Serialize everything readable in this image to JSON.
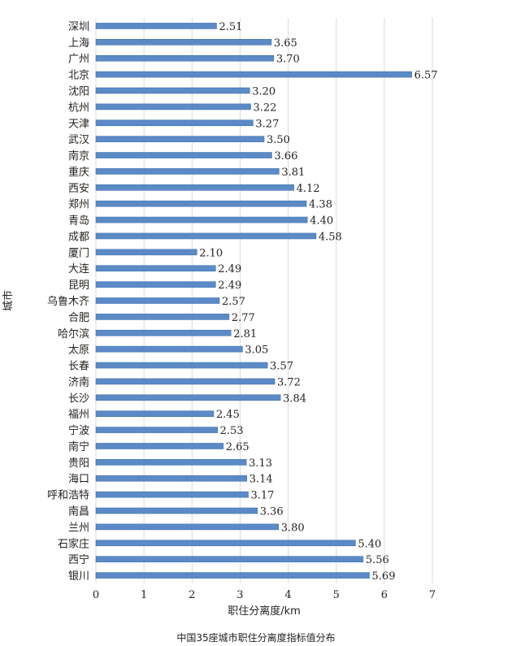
{
  "chart_data": {
    "type": "bar",
    "orientation": "horizontal",
    "categories": [
      "深圳",
      "上海",
      "广州",
      "北京",
      "沈阳",
      "杭州",
      "天津",
      "武汉",
      "南京",
      "重庆",
      "西安",
      "郑州",
      "青岛",
      "成都",
      "厦门",
      "大连",
      "昆明",
      "乌鲁木齐",
      "合肥",
      "哈尔滨",
      "太原",
      "长春",
      "济南",
      "长沙",
      "福州",
      "宁波",
      "南宁",
      "贵阳",
      "海口",
      "呼和浩特",
      "南昌",
      "兰州",
      "石家庄",
      "西宁",
      "银川"
    ],
    "values": [
      2.51,
      3.65,
      3.7,
      6.57,
      3.2,
      3.22,
      3.27,
      3.5,
      3.66,
      3.81,
      4.12,
      4.38,
      4.4,
      4.58,
      2.1,
      2.49,
      2.49,
      2.57,
      2.77,
      2.81,
      3.05,
      3.57,
      3.72,
      3.84,
      2.45,
      2.53,
      2.65,
      3.13,
      3.14,
      3.17,
      3.36,
      3.8,
      5.4,
      5.56,
      5.69
    ],
    "value_labels": [
      "2.51",
      "3.65",
      "3.70",
      "6.57",
      "3.20",
      "3.22",
      "3.27",
      "3.50",
      "3.66",
      "3.81",
      "4.12",
      "4.38",
      "4.40",
      "4.58",
      "2.10",
      "2.49",
      "2.49",
      "2.57",
      "2.77",
      "2.81",
      "3.05",
      "3.57",
      "3.72",
      "3.84",
      "2.45",
      "2.53",
      "2.65",
      "3.13",
      "3.14",
      "3.17",
      "3.36",
      "3.80",
      "5.40",
      "5.56",
      "5.69"
    ],
    "xlim": [
      0,
      7
    ],
    "xticks": [
      "0",
      "1",
      "2",
      "3",
      "4",
      "5",
      "6",
      "7"
    ],
    "xlabel": "职住分离度/km",
    "ylabel": "城市",
    "title": "中国35座城市职住分离度指标值分布",
    "grid": true,
    "bar_color": "#5b8ac7",
    "bar_edge_color": "#3f6fae"
  }
}
